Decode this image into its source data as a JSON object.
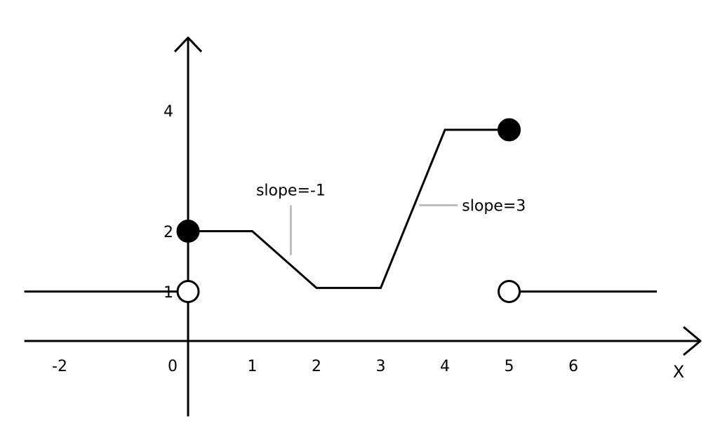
{
  "chart_data": {
    "type": "line",
    "xlabel": "X",
    "ylabel": "",
    "x_ticks": [
      {
        "value": -2,
        "label": "-2"
      },
      {
        "value": 0,
        "label": "0"
      },
      {
        "value": 1,
        "label": "1"
      },
      {
        "value": 2,
        "label": "2"
      },
      {
        "value": 3,
        "label": "3"
      },
      {
        "value": 4,
        "label": "4"
      },
      {
        "value": 5,
        "label": "5"
      },
      {
        "value": 6,
        "label": "6"
      }
    ],
    "y_ticks": [
      {
        "value": 1,
        "label": "1"
      },
      {
        "value": 2,
        "label": "2"
      },
      {
        "value": 4,
        "label": "4"
      }
    ],
    "xlim": [
      -2.55,
      8
    ],
    "ylim": [
      -1.25,
      5.05
    ],
    "series": [
      {
        "points": [
          [
            -2.55,
            0.82
          ],
          [
            0,
            0.82
          ]
        ]
      },
      {
        "points": [
          [
            0,
            1.82
          ],
          [
            1,
            1.82
          ],
          [
            2,
            0.88
          ],
          [
            3,
            0.88
          ],
          [
            4,
            3.5
          ],
          [
            5,
            3.5
          ]
        ]
      },
      {
        "points": [
          [
            5,
            0.82
          ],
          [
            7.3,
            0.82
          ]
        ]
      }
    ],
    "markers": [
      {
        "x": 0,
        "y": 1.82,
        "filled": true
      },
      {
        "x": 0,
        "y": 0.82,
        "filled": false
      },
      {
        "x": 5,
        "y": 3.5,
        "filled": true
      },
      {
        "x": 5,
        "y": 0.82,
        "filled": false
      }
    ],
    "annotations": [
      {
        "text": "slope=-1",
        "target": [
          1.6,
          1.42
        ],
        "anchor": [
          1.6,
          2.25
        ]
      },
      {
        "text": "slope=3",
        "target": [
          3.6,
          2.25
        ],
        "anchor": [
          4.2,
          2.25
        ]
      }
    ],
    "grid": false,
    "legend": "none"
  }
}
